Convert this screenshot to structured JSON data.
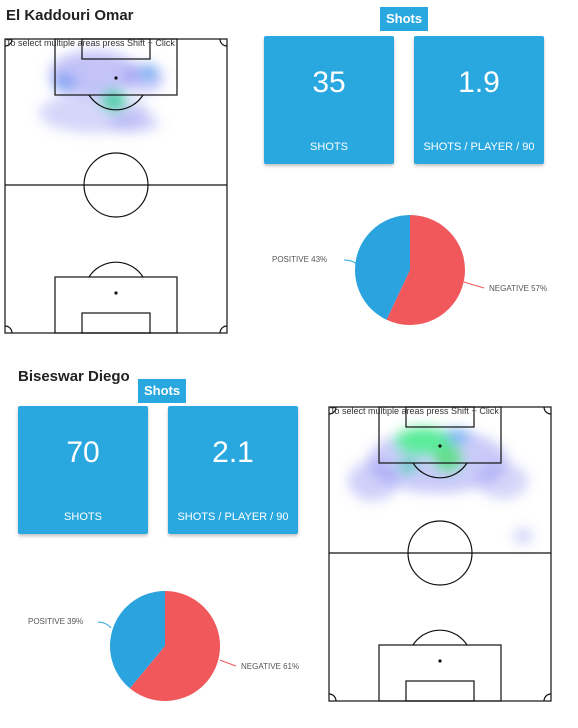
{
  "players": [
    {
      "name": "El Kaddouri Omar",
      "section_tag": "Shots",
      "hint": "To select multiple areas press Shift + Click",
      "cards": [
        {
          "value": "35",
          "label": "SHOTS"
        },
        {
          "value": "1.9",
          "label": "SHOTS / PLAYER / 90"
        }
      ],
      "pie": {
        "positive_label": "POSITIVE 43%",
        "negative_label": "NEGATIVE 57%",
        "positive_pct": 43,
        "negative_pct": 57
      }
    },
    {
      "name": "Biseswar Diego",
      "section_tag": "Shots",
      "hint": "To select multiple areas press Shift + Click",
      "cards": [
        {
          "value": "70",
          "label": "SHOTS"
        },
        {
          "value": "2.1",
          "label": "SHOTS / PLAYER / 90"
        }
      ],
      "pie": {
        "positive_label": "POSITIVE 39%",
        "negative_label": "NEGATIVE 61%",
        "positive_pct": 39,
        "negative_pct": 61
      }
    }
  ],
  "colors": {
    "accent": "#29a8e0",
    "positive": "#2ba3df",
    "negative": "#f0585b"
  }
}
